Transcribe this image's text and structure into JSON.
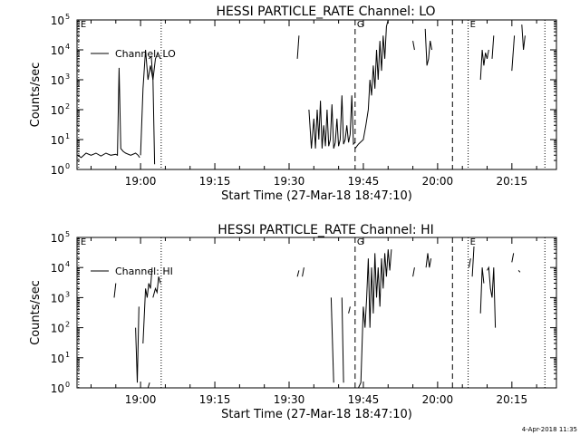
{
  "footer": {
    "timestamp": "4-Apr-2018 11:35"
  },
  "chart_data": [
    {
      "type": "line",
      "title": "HESSI PARTICLE_RATE Channel: LO",
      "xlabel": "Start Time (27-Mar-18 18:47:10)",
      "ylabel": "Counts/sec",
      "yscale": "log",
      "xlim": [
        "18:47:10",
        "20:24:00"
      ],
      "ylim": [
        1,
        100000
      ],
      "x_ticks": [
        "19:00",
        "19:15",
        "19:30",
        "19:45",
        "20:00",
        "20:15"
      ],
      "y_ticks": [
        {
          "label": "10",
          "exp": "0"
        },
        {
          "label": "10",
          "exp": "1"
        },
        {
          "label": "10",
          "exp": "2"
        },
        {
          "label": "10",
          "exp": "3"
        },
        {
          "label": "10",
          "exp": "4"
        },
        {
          "label": "10",
          "exp": "5"
        }
      ],
      "legend": {
        "label": "Channel: LO",
        "position": "top-left"
      },
      "markers": [
        {
          "time": "18:47:30",
          "label": "E",
          "style": "dotted"
        },
        {
          "time": "19:04:10",
          "label": "",
          "style": "dotted"
        },
        {
          "time": "19:43:20",
          "label": "G",
          "style": "dashed"
        },
        {
          "time": "20:03:00",
          "label": "",
          "style": "dashed"
        },
        {
          "time": "20:06:10",
          "label": "E",
          "style": "dotted"
        },
        {
          "time": "20:21:40",
          "label": "",
          "style": "dotted"
        }
      ],
      "segments": [
        [
          [
            "18:47:20",
            3
          ],
          [
            "18:48:00",
            2.5
          ],
          [
            "18:49:00",
            3.5
          ],
          [
            "18:50:00",
            3
          ],
          [
            "18:51:00",
            3.5
          ],
          [
            "18:52:00",
            2.8
          ],
          [
            "18:53:00",
            3.5
          ],
          [
            "18:54:00",
            3
          ],
          [
            "18:55:00",
            3.2
          ],
          [
            "18:55:20",
            3
          ],
          [
            "18:55:40",
            2500
          ],
          [
            "18:56:00",
            5
          ],
          [
            "18:56:30",
            4
          ],
          [
            "18:57:00",
            3.5
          ],
          [
            "18:58:00",
            3
          ],
          [
            "18:59:00",
            3.5
          ],
          [
            "18:59:30",
            3
          ],
          [
            "18:59:50",
            2.5
          ]
        ],
        [
          [
            "19:00:00",
            3
          ],
          [
            "19:00:30",
            500
          ],
          [
            "19:01:00",
            10000
          ],
          [
            "19:01:30",
            1000
          ],
          [
            "19:02:00",
            3000
          ],
          [
            "19:02:30",
            1000
          ],
          [
            "19:03:00",
            5000
          ],
          [
            "19:03:30",
            8000
          ],
          [
            "19:04:00",
            5000
          ]
        ],
        [
          [
            "19:01:40",
            5000
          ],
          [
            "19:02:10",
            6000
          ],
          [
            "19:02:30",
            1000
          ],
          [
            "19:02:50",
            1.5
          ]
        ],
        [
          [
            "19:31:40",
            5000
          ],
          [
            "19:32:00",
            30000
          ]
        ],
        [
          [
            "19:34:00",
            100
          ],
          [
            "19:34:30",
            5
          ],
          [
            "19:35:00",
            50
          ],
          [
            "19:35:20",
            5
          ],
          [
            "19:35:40",
            100
          ],
          [
            "19:36:00",
            10
          ],
          [
            "19:36:20",
            200
          ],
          [
            "19:36:40",
            5
          ],
          [
            "19:37:00",
            30
          ],
          [
            "19:37:20",
            6
          ],
          [
            "19:37:40",
            100
          ],
          [
            "19:38:00",
            6
          ],
          [
            "19:38:20",
            10
          ],
          [
            "19:38:40",
            150
          ],
          [
            "19:39:00",
            5
          ],
          [
            "19:39:20",
            8
          ],
          [
            "19:39:40",
            50
          ],
          [
            "19:40:00",
            6
          ],
          [
            "19:40:20",
            10
          ],
          [
            "19:40:40",
            300
          ],
          [
            "19:41:00",
            7
          ],
          [
            "19:41:20",
            10
          ],
          [
            "19:41:40",
            30
          ],
          [
            "19:42:00",
            8
          ],
          [
            "19:42:20",
            15
          ],
          [
            "19:42:40",
            300
          ],
          [
            "19:43:00",
            7
          ],
          [
            "19:43:20",
            8
          ]
        ],
        [
          [
            "19:43:20",
            5
          ],
          [
            "19:44:00",
            7
          ],
          [
            "19:45:00",
            10
          ],
          [
            "19:45:30",
            30
          ],
          [
            "19:46:00",
            100
          ],
          [
            "19:46:20",
            1000
          ],
          [
            "19:46:40",
            300
          ],
          [
            "19:47:00",
            3000
          ],
          [
            "19:47:20",
            500
          ],
          [
            "19:47:40",
            10000
          ],
          [
            "19:48:00",
            1000
          ],
          [
            "19:48:20",
            20000
          ],
          [
            "19:48:40",
            2000
          ],
          [
            "19:49:00",
            30000
          ],
          [
            "19:49:20",
            5000
          ],
          [
            "19:49:40",
            60000
          ],
          [
            "19:50:00",
            100000
          ]
        ],
        [
          [
            "19:55:00",
            20000
          ],
          [
            "19:55:20",
            10000
          ]
        ],
        [
          [
            "19:57:30",
            50000
          ],
          [
            "19:57:50",
            3000
          ],
          [
            "19:58:10",
            5000
          ],
          [
            "19:58:30",
            20000
          ],
          [
            "19:58:50",
            10000
          ]
        ],
        [
          [
            "20:08:40",
            1000
          ],
          [
            "20:09:00",
            10000
          ],
          [
            "20:09:20",
            3000
          ],
          [
            "20:09:40",
            8000
          ],
          [
            "20:10:00",
            5000
          ],
          [
            "20:10:20",
            10000
          ]
        ],
        [
          [
            "20:11:00",
            5000
          ],
          [
            "20:11:20",
            30000
          ]
        ],
        [
          [
            "20:15:00",
            2000
          ],
          [
            "20:15:30",
            30000
          ]
        ],
        [
          [
            "20:17:00",
            70000
          ],
          [
            "20:17:20",
            10000
          ],
          [
            "20:17:40",
            30000
          ]
        ]
      ]
    },
    {
      "type": "line",
      "title": "HESSI PARTICLE_RATE Channel: HI",
      "xlabel": "Start Time (27-Mar-18 18:47:10)",
      "ylabel": "Counts/sec",
      "yscale": "log",
      "xlim": [
        "18:47:10",
        "20:24:00"
      ],
      "ylim": [
        1,
        100000
      ],
      "x_ticks": [
        "19:00",
        "19:15",
        "19:30",
        "19:45",
        "20:00",
        "20:15"
      ],
      "y_ticks": [
        {
          "label": "10",
          "exp": "0"
        },
        {
          "label": "10",
          "exp": "1"
        },
        {
          "label": "10",
          "exp": "2"
        },
        {
          "label": "10",
          "exp": "3"
        },
        {
          "label": "10",
          "exp": "4"
        },
        {
          "label": "10",
          "exp": "5"
        }
      ],
      "legend": {
        "label": "Channel: HI",
        "position": "top-left"
      },
      "markers": [
        {
          "time": "18:47:30",
          "label": "E",
          "style": "dotted"
        },
        {
          "time": "19:04:10",
          "label": "",
          "style": "dotted"
        },
        {
          "time": "19:43:20",
          "label": "G",
          "style": "dashed"
        },
        {
          "time": "20:03:00",
          "label": "",
          "style": "dashed"
        },
        {
          "time": "20:06:10",
          "label": "E",
          "style": "dotted"
        },
        {
          "time": "20:21:40",
          "label": "",
          "style": "dotted"
        }
      ],
      "segments": [
        [
          [
            "18:54:40",
            1000
          ],
          [
            "18:55:00",
            3000
          ]
        ],
        [
          [
            "18:59:00",
            100
          ],
          [
            "18:59:20",
            1.5
          ],
          [
            "18:59:40",
            500
          ]
        ],
        [
          [
            "19:00:30",
            30
          ],
          [
            "19:01:00",
            2000
          ],
          [
            "19:01:20",
            1000
          ],
          [
            "19:01:40",
            3000
          ],
          [
            "19:02:00",
            2000
          ],
          [
            "19:02:20",
            10000
          ]
        ],
        [
          [
            "19:01:30",
            1
          ],
          [
            "19:01:50",
            1.5
          ]
        ],
        [
          [
            "19:02:30",
            1000
          ],
          [
            "19:03:00",
            2000
          ],
          [
            "19:03:20",
            1500
          ],
          [
            "19:03:40",
            5000
          ],
          [
            "19:04:00",
            3000
          ]
        ],
        [
          [
            "19:31:40",
            5000
          ],
          [
            "19:32:00",
            8000
          ]
        ],
        [
          [
            "19:32:40",
            5000
          ],
          [
            "19:33:00",
            10000
          ]
        ],
        [
          [
            "19:38:30",
            1000
          ],
          [
            "19:39:00",
            1.5
          ]
        ],
        [
          [
            "19:40:40",
            1000
          ],
          [
            "19:41:00",
            1.5
          ]
        ],
        [
          [
            "19:42:00",
            300
          ],
          [
            "19:42:20",
            500
          ]
        ],
        [
          [
            "19:44:00",
            1
          ],
          [
            "19:44:30",
            1.5
          ],
          [
            "19:45:00",
            500
          ],
          [
            "19:45:20",
            100
          ],
          [
            "19:45:40",
            1000
          ],
          [
            "19:46:00",
            20000
          ],
          [
            "19:46:20",
            100
          ],
          [
            "19:46:40",
            10000
          ],
          [
            "19:47:00",
            300
          ],
          [
            "19:47:20",
            30000
          ],
          [
            "19:47:40",
            1000
          ],
          [
            "19:48:00",
            10000
          ],
          [
            "19:48:20",
            500
          ],
          [
            "19:48:40",
            20000
          ],
          [
            "19:49:00",
            2000
          ],
          [
            "19:49:20",
            30000
          ],
          [
            "19:49:40",
            5000
          ],
          [
            "19:50:00",
            40000
          ],
          [
            "19:50:20",
            8000
          ],
          [
            "19:50:40",
            40000
          ]
        ],
        [
          [
            "19:55:00",
            5000
          ],
          [
            "19:55:20",
            10000
          ]
        ],
        [
          [
            "19:57:40",
            10000
          ],
          [
            "19:58:00",
            30000
          ],
          [
            "19:58:20",
            10000
          ],
          [
            "19:58:40",
            20000
          ]
        ],
        [
          [
            "20:06:20",
            10000
          ],
          [
            "20:06:40",
            20000
          ]
        ],
        [
          [
            "20:07:00",
            5000
          ],
          [
            "20:07:20",
            50000
          ]
        ],
        [
          [
            "20:08:40",
            300
          ],
          [
            "20:09:00",
            10000
          ],
          [
            "20:09:20",
            3000
          ]
        ],
        [
          [
            "20:10:00",
            8000
          ],
          [
            "20:10:20",
            10000
          ],
          [
            "20:10:40",
            2000
          ],
          [
            "20:11:00",
            1000
          ],
          [
            "20:11:20",
            10000
          ],
          [
            "20:11:40",
            100
          ]
        ],
        [
          [
            "20:15:00",
            15000
          ],
          [
            "20:15:20",
            30000
          ]
        ],
        [
          [
            "20:16:20",
            8000
          ],
          [
            "20:16:40",
            7000
          ]
        ]
      ]
    }
  ]
}
